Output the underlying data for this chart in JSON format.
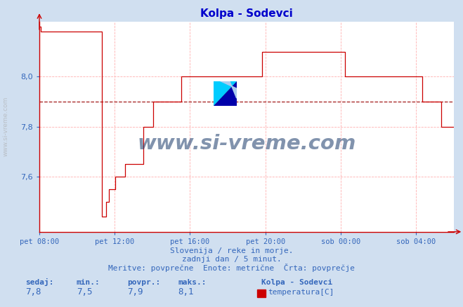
{
  "title": "Kolpa - Sodevci",
  "title_color": "#0000cc",
  "bg_color": "#d0dff0",
  "plot_bg_color": "#ffffff",
  "line_color": "#cc0000",
  "avg_line_color": "#990000",
  "grid_color": "#ffb0b0",
  "axis_color": "#cc0000",
  "text_color": "#3366bb",
  "watermark": "www.si-vreme.com",
  "watermark_color": "#1a3a6b",
  "subtitle1": "Slovenija / reke in morje.",
  "subtitle2": "zadnji dan / 5 minut.",
  "subtitle3": "Meritve: povprečne  Enote: metrične  Črta: povprečje",
  "stat_labels": [
    "sedaj:",
    "min.:",
    "povpr.:",
    "maks.:"
  ],
  "stat_values": [
    "7,8",
    "7,5",
    "7,9",
    "8,1"
  ],
  "legend_title": "Kolpa - Sodevci",
  "legend_label": "temperatura[C]",
  "legend_color": "#cc0000",
  "xticklabels": [
    "pet 08:00",
    "pet 12:00",
    "pet 16:00",
    "pet 20:00",
    "sob 00:00",
    "sob 04:00"
  ],
  "ytick_values": [
    7.6,
    7.8,
    8.0
  ],
  "ytick_labels": [
    "7,6",
    "7,8",
    "8,0"
  ],
  "ylim": [
    7.38,
    8.22
  ],
  "xlim_hours": [
    0,
    22
  ],
  "avg_value": 7.9,
  "tick_hour_positions": [
    0,
    4,
    8,
    12,
    16,
    20
  ],
  "sivreme_left_label": "www.si-vreme.com"
}
